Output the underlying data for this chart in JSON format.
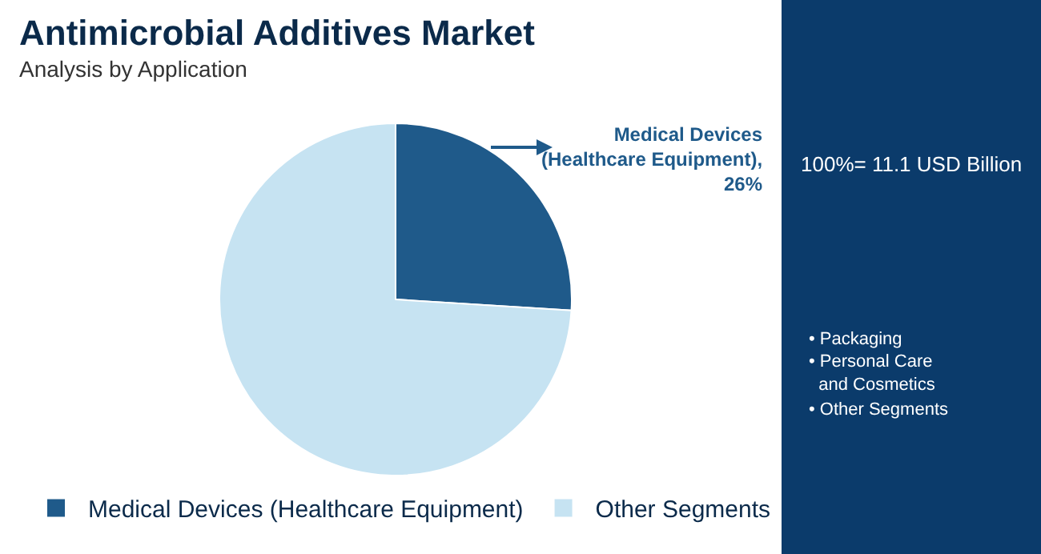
{
  "chart_data": {
    "type": "pie",
    "title": "Antimicrobial Additives Market",
    "subtitle": "Analysis by Application",
    "categories": [
      "Medical Devices (Healthcare Equipment)",
      "Other Segments"
    ],
    "values": [
      26,
      74
    ],
    "colors": [
      "#1f5a8a",
      "#c6e3f2"
    ],
    "value_labels": [
      "Medical Devices (Healthcare Equipment), 26%",
      null
    ],
    "annotations": [
      "100%= 11.1 USD Billion",
      "• Packaging",
      "• Personal Care and Cosmetics",
      "• Other Segments"
    ],
    "legend": "bottom"
  }
}
